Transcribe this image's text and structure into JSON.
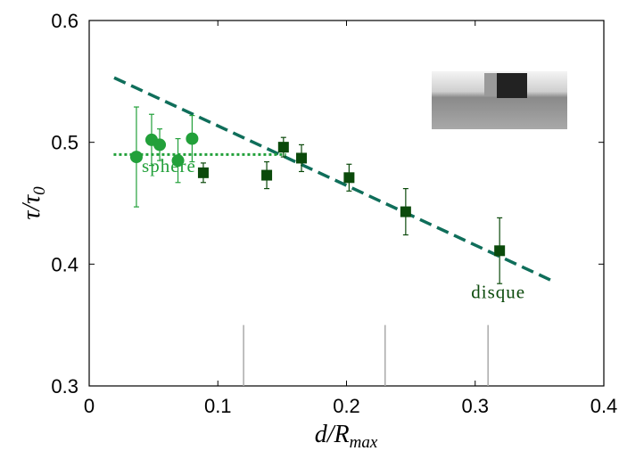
{
  "chart_data": {
    "type": "scatter",
    "xlabel": "d/R",
    "xlabel_sub": "max",
    "ylabel": "τ/τ",
    "ylabel_sub": "0",
    "xlim": [
      0,
      0.4
    ],
    "ylim": [
      0.3,
      0.6
    ],
    "xticks": [
      0,
      0.1,
      0.2,
      0.3,
      0.4
    ],
    "yticks": [
      0.3,
      0.4,
      0.5,
      0.6
    ],
    "series": [
      {
        "name": "sphere",
        "color": "#22a03a",
        "marker": "circle",
        "x": [
          0.0367,
          0.0485,
          0.0548,
          0.069,
          0.08
        ],
        "values": [
          0.488,
          0.502,
          0.498,
          0.485,
          0.503
        ],
        "errors": [
          0.041,
          0.021,
          0.013,
          0.018,
          0.019
        ]
      },
      {
        "name": "disque",
        "color": "#0b4a0b",
        "marker": "square",
        "x": [
          0.0887,
          0.138,
          0.151,
          0.165,
          0.202,
          0.246,
          0.319
        ],
        "values": [
          0.475,
          0.473,
          0.496,
          0.487,
          0.471,
          0.443,
          0.411
        ],
        "errors": [
          0.008,
          0.011,
          0.008,
          0.011,
          0.011,
          0.019,
          0.027
        ]
      }
    ],
    "lines": [
      {
        "x": [
          0.0194,
          0.3605
        ],
        "values": [
          0.553,
          0.386
        ],
        "color": "#0f6e5a",
        "style": "dashed"
      },
      {
        "x": [
          0.019,
          0.153
        ],
        "values": [
          0.49,
          0.49
        ],
        "color": "#22a03a",
        "style": "dotted"
      }
    ],
    "vlines": {
      "x": [
        0.12,
        0.23,
        0.31
      ],
      "ylim": [
        0.3,
        0.35
      ],
      "color": "#aaaaaa"
    },
    "annotations": [
      {
        "text": "sphere",
        "x": 0.062,
        "y": 0.4755,
        "color": "#22a03a"
      },
      {
        "text": "disque",
        "x": 0.318,
        "y": 0.372,
        "color": "#0b4a0b"
      }
    ]
  }
}
